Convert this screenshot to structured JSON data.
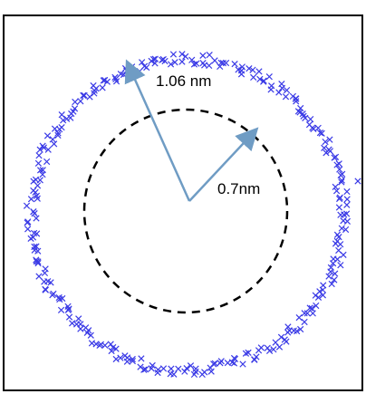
{
  "labels": {
    "outer_radius": "1.06 nm",
    "inner_radius": "0.7nm"
  },
  "colors": {
    "points": "#3a3ae6",
    "arrow": "#6f9cc4",
    "dashed_circle": "#000000",
    "frame": "#000000"
  },
  "diagram": {
    "inner_radius_nm": 0.7,
    "outer_radius_nm": 1.06,
    "marker": "x",
    "point_count": 300
  }
}
